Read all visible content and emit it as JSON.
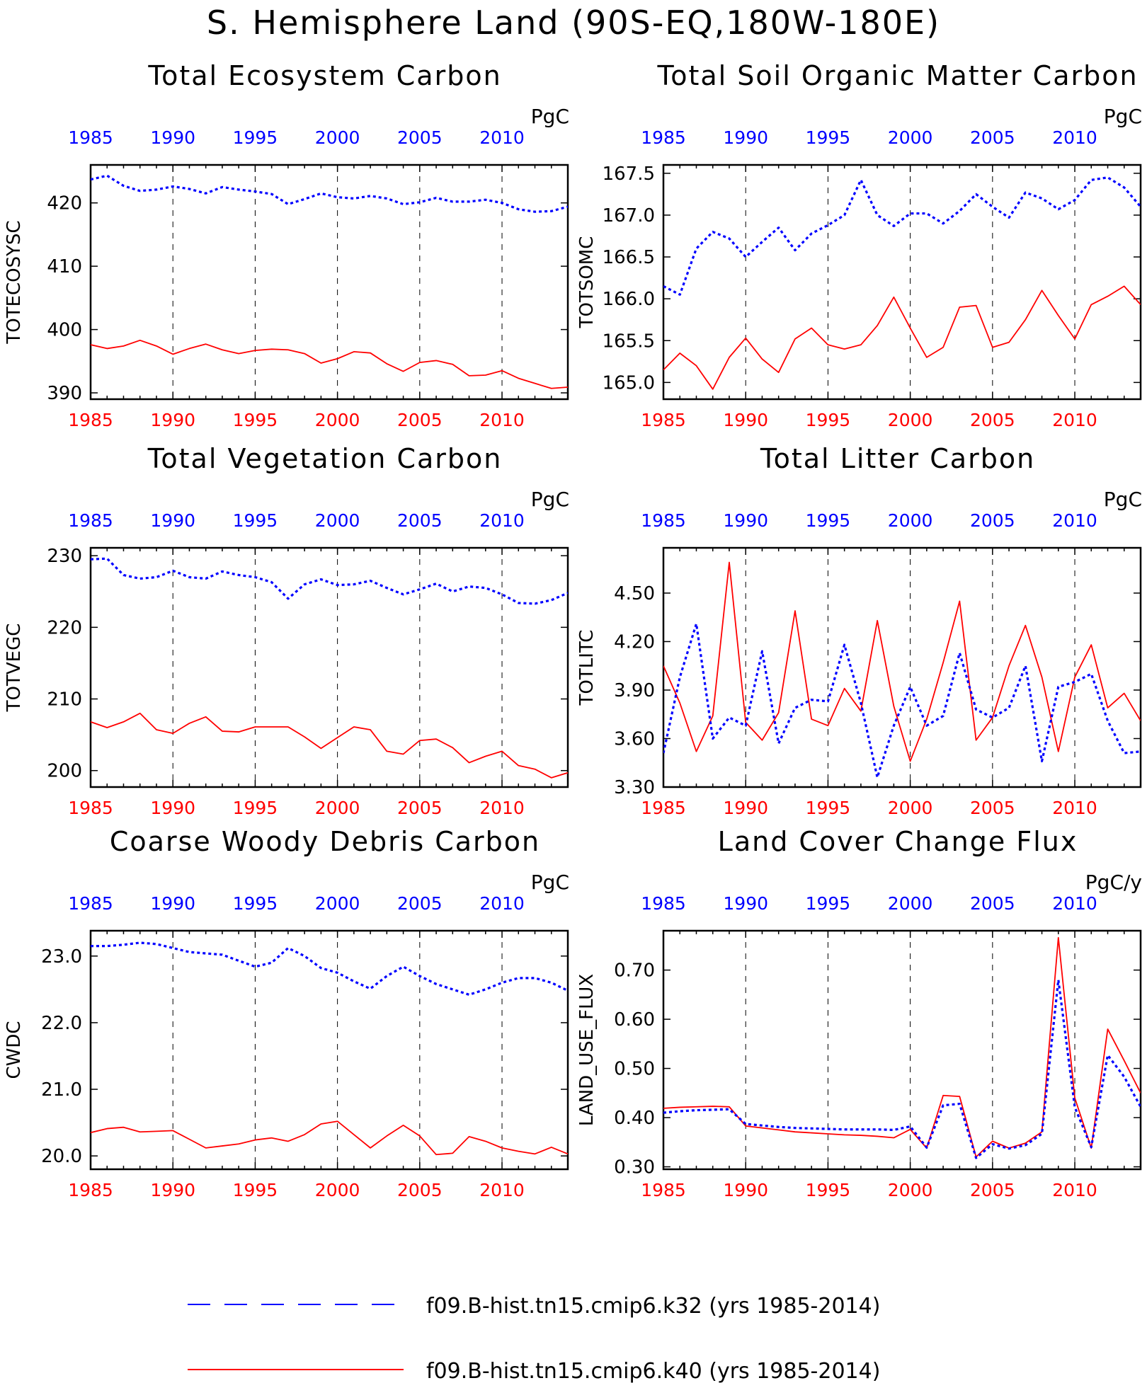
{
  "figure": {
    "title": "S. Hemisphere Land (90S-EQ,180W-180E)",
    "colors": {
      "series_k32": "#0000ff",
      "series_k40": "#ff0000",
      "axis": "#000000"
    }
  },
  "legend": {
    "entries": [
      {
        "label": "f09.B-hist.tn15.cmip6.k32 (yrs 1985-2014)",
        "color": "#0000ff",
        "style": "dashed"
      },
      {
        "label": "f09.B-hist.tn15.cmip6.k40 (yrs 1985-2014)",
        "color": "#ff0000",
        "style": "solid"
      }
    ]
  },
  "chart_data": [
    {
      "type": "line",
      "title": "Total Ecosystem Carbon",
      "ylabel": "TOTECOSYSC",
      "units": "PgC",
      "xlim": [
        1985,
        2014
      ],
      "ylim": [
        389,
        426
      ],
      "yticks": [
        390,
        400,
        410,
        420
      ],
      "ytick_labels": [
        "390",
        "400",
        "410",
        "420"
      ],
      "xticks": [
        1985,
        1990,
        1995,
        2000,
        2005,
        2010
      ],
      "x": [
        1985,
        1986,
        1987,
        1988,
        1989,
        1990,
        1991,
        1992,
        1993,
        1994,
        1995,
        1996,
        1997,
        1998,
        1999,
        2000,
        2001,
        2002,
        2003,
        2004,
        2005,
        2006,
        2007,
        2008,
        2009,
        2010,
        2011,
        2012,
        2013,
        2014
      ],
      "series": [
        {
          "name": "f09.B-hist.tn15.cmip6.k32",
          "values": [
            423.7,
            424.3,
            422.7,
            421.9,
            422.1,
            422.6,
            422.2,
            421.5,
            422.5,
            422.1,
            421.8,
            421.4,
            419.8,
            420.6,
            421.5,
            420.9,
            420.7,
            421.1,
            420.7,
            419.8,
            420.1,
            420.8,
            420.2,
            420.2,
            420.5,
            420.0,
            419.0,
            418.6,
            418.7,
            419.4
          ]
        },
        {
          "name": "f09.B-hist.tn15.cmip6.k40",
          "values": [
            397.6,
            397.0,
            397.4,
            398.3,
            397.4,
            396.1,
            397.0,
            397.7,
            396.8,
            396.2,
            396.7,
            396.9,
            396.8,
            396.2,
            394.7,
            395.4,
            396.5,
            396.3,
            394.6,
            393.4,
            394.8,
            395.1,
            394.5,
            392.7,
            392.8,
            393.5,
            392.3,
            391.5,
            390.7,
            390.9
          ]
        }
      ]
    },
    {
      "type": "line",
      "title": "Total Soil Organic Matter Carbon",
      "ylabel": "TOTSOMC",
      "units": "PgC",
      "xlim": [
        1985,
        2014
      ],
      "ylim": [
        164.8,
        167.6
      ],
      "yticks": [
        165.0,
        165.5,
        166.0,
        166.5,
        167.0,
        167.5
      ],
      "ytick_labels": [
        "165.0",
        "165.5",
        "166.0",
        "166.5",
        "167.0",
        "167.5"
      ],
      "xticks": [
        1985,
        1990,
        1995,
        2000,
        2005,
        2010
      ],
      "x": [
        1985,
        1986,
        1987,
        1988,
        1989,
        1990,
        1991,
        1992,
        1993,
        1994,
        1995,
        1996,
        1997,
        1998,
        1999,
        2000,
        2001,
        2002,
        2003,
        2004,
        2005,
        2006,
        2007,
        2008,
        2009,
        2010,
        2011,
        2012,
        2013,
        2014
      ],
      "series": [
        {
          "name": "f09.B-hist.tn15.cmip6.k32",
          "values": [
            166.15,
            166.05,
            166.6,
            166.8,
            166.72,
            166.5,
            166.68,
            166.85,
            166.58,
            166.78,
            166.88,
            167.0,
            167.42,
            167.0,
            166.87,
            167.02,
            167.02,
            166.9,
            167.05,
            167.25,
            167.1,
            166.97,
            167.27,
            167.2,
            167.07,
            167.18,
            167.42,
            167.45,
            167.33,
            167.1
          ]
        },
        {
          "name": "f09.B-hist.tn15.cmip6.k40",
          "values": [
            165.15,
            165.35,
            165.2,
            164.92,
            165.3,
            165.53,
            165.28,
            165.12,
            165.52,
            165.65,
            165.45,
            165.4,
            165.45,
            165.68,
            166.02,
            165.65,
            165.3,
            165.42,
            165.9,
            165.92,
            165.42,
            165.48,
            165.75,
            166.1,
            165.8,
            165.52,
            165.93,
            166.03,
            166.15,
            165.93
          ]
        }
      ]
    },
    {
      "type": "line",
      "title": "Total Vegetation Carbon",
      "ylabel": "TOTVEGC",
      "units": "PgC",
      "xlim": [
        1985,
        2014
      ],
      "ylim": [
        197.7,
        231.1
      ],
      "yticks": [
        200,
        210,
        220,
        230
      ],
      "ytick_labels": [
        "200",
        "210",
        "220",
        "230"
      ],
      "xticks": [
        1985,
        1990,
        1995,
        2000,
        2005,
        2010
      ],
      "x": [
        1985,
        1986,
        1987,
        1988,
        1989,
        1990,
        1991,
        1992,
        1993,
        1994,
        1995,
        1996,
        1997,
        1998,
        1999,
        2000,
        2001,
        2002,
        2003,
        2004,
        2005,
        2006,
        2007,
        2008,
        2009,
        2010,
        2011,
        2012,
        2013,
        2014
      ],
      "series": [
        {
          "name": "f09.B-hist.tn15.cmip6.k32",
          "values": [
            229.5,
            229.6,
            227.3,
            226.8,
            227.0,
            227.9,
            227.0,
            226.8,
            227.8,
            227.3,
            227.0,
            226.3,
            224.0,
            226.0,
            226.7,
            225.9,
            226.0,
            226.5,
            225.5,
            224.6,
            225.3,
            226.1,
            225.0,
            225.7,
            225.5,
            224.6,
            223.4,
            223.3,
            223.8,
            224.8
          ]
        },
        {
          "name": "f09.B-hist.tn15.cmip6.k40",
          "values": [
            206.8,
            206.0,
            206.8,
            208.0,
            205.7,
            205.2,
            206.6,
            207.5,
            205.5,
            205.4,
            206.1,
            206.1,
            206.1,
            204.7,
            203.1,
            204.6,
            206.1,
            205.7,
            202.7,
            202.3,
            204.2,
            204.4,
            203.2,
            201.1,
            202.0,
            202.7,
            200.7,
            200.2,
            199.0,
            199.7
          ]
        }
      ]
    },
    {
      "type": "line",
      "title": "Total Litter Carbon",
      "ylabel": "TOTLITC",
      "units": "PgC",
      "xlim": [
        1985,
        2014
      ],
      "ylim": [
        3.3,
        4.78
      ],
      "yticks": [
        3.3,
        3.6,
        3.9,
        4.2,
        4.5
      ],
      "ytick_labels": [
        "3.30",
        "3.60",
        "3.90",
        "4.20",
        "4.50"
      ],
      "xticks": [
        1985,
        1990,
        1995,
        2000,
        2005,
        2010
      ],
      "x": [
        1985,
        1986,
        1987,
        1988,
        1989,
        1990,
        1991,
        1992,
        1993,
        1994,
        1995,
        1996,
        1997,
        1998,
        1999,
        2000,
        2001,
        2002,
        2003,
        2004,
        2005,
        2006,
        2007,
        2008,
        2009,
        2010,
        2011,
        2012,
        2013,
        2014
      ],
      "series": [
        {
          "name": "f09.B-hist.tn15.cmip6.k32",
          "values": [
            3.51,
            3.98,
            4.31,
            3.6,
            3.73,
            3.68,
            4.14,
            3.57,
            3.79,
            3.84,
            3.83,
            4.18,
            3.82,
            3.36,
            3.68,
            3.92,
            3.68,
            3.74,
            4.13,
            3.78,
            3.73,
            3.79,
            4.05,
            3.46,
            3.92,
            3.95,
            4.0,
            3.71,
            3.51,
            3.52
          ]
        },
        {
          "name": "f09.B-hist.tn15.cmip6.k40",
          "values": [
            4.05,
            3.82,
            3.52,
            3.74,
            4.69,
            3.7,
            3.59,
            3.76,
            4.39,
            3.72,
            3.68,
            3.91,
            3.77,
            4.33,
            3.8,
            3.46,
            3.72,
            4.07,
            4.45,
            3.59,
            3.73,
            4.05,
            4.3,
            3.98,
            3.52,
            3.98,
            4.18,
            3.79,
            3.88,
            3.71
          ]
        }
      ]
    },
    {
      "type": "line",
      "title": "Coarse Woody Debris Carbon",
      "ylabel": "CWDC",
      "units": "PgC",
      "xlim": [
        1985,
        2014
      ],
      "ylim": [
        19.8,
        23.38
      ],
      "yticks": [
        20.0,
        21.0,
        22.0,
        23.0
      ],
      "ytick_labels": [
        "20.0",
        "21.0",
        "22.0",
        "23.0"
      ],
      "xticks": [
        1985,
        1990,
        1995,
        2000,
        2005,
        2010
      ],
      "x": [
        1985,
        1986,
        1987,
        1988,
        1989,
        1990,
        1991,
        1992,
        1993,
        1994,
        1995,
        1996,
        1997,
        1998,
        1999,
        2000,
        2001,
        2002,
        2003,
        2004,
        2005,
        2006,
        2007,
        2008,
        2009,
        2010,
        2011,
        2012,
        2013,
        2014
      ],
      "series": [
        {
          "name": "f09.B-hist.tn15.cmip6.k32",
          "values": [
            23.15,
            23.15,
            23.17,
            23.2,
            23.18,
            23.12,
            23.06,
            23.04,
            23.02,
            22.93,
            22.84,
            22.9,
            23.12,
            23.0,
            22.82,
            22.75,
            22.62,
            22.51,
            22.7,
            22.84,
            22.7,
            22.58,
            22.5,
            22.42,
            22.5,
            22.6,
            22.67,
            22.67,
            22.6,
            22.48
          ]
        },
        {
          "name": "f09.B-hist.tn15.cmip6.k40",
          "values": [
            20.35,
            20.41,
            20.43,
            20.36,
            20.37,
            20.38,
            20.25,
            20.12,
            20.15,
            20.18,
            20.24,
            20.27,
            20.22,
            20.32,
            20.48,
            20.52,
            20.32,
            20.12,
            20.3,
            20.46,
            20.3,
            20.02,
            20.04,
            20.29,
            20.22,
            20.12,
            20.07,
            20.03,
            20.13,
            20.03
          ]
        }
      ]
    },
    {
      "type": "line",
      "title": "Land Cover Change Flux",
      "ylabel": "LAND_USE_FLUX",
      "units": "PgC/y",
      "xlim": [
        1985,
        2014
      ],
      "ylim": [
        0.295,
        0.78
      ],
      "yticks": [
        0.3,
        0.4,
        0.5,
        0.6,
        0.7
      ],
      "ytick_labels": [
        "0.30",
        "0.40",
        "0.50",
        "0.60",
        "0.70"
      ],
      "xticks": [
        1985,
        1990,
        1995,
        2000,
        2005,
        2010
      ],
      "x": [
        1985,
        1986,
        1987,
        1988,
        1989,
        1990,
        1991,
        1992,
        1993,
        1994,
        1995,
        1996,
        1997,
        1998,
        1999,
        2000,
        2001,
        2002,
        2003,
        2004,
        2005,
        2006,
        2007,
        2008,
        2009,
        2010,
        2011,
        2012,
        2013,
        2014
      ],
      "series": [
        {
          "name": "f09.B-hist.tn15.cmip6.k32",
          "values": [
            0.41,
            0.413,
            0.415,
            0.416,
            0.417,
            0.387,
            0.384,
            0.381,
            0.379,
            0.378,
            0.377,
            0.376,
            0.376,
            0.376,
            0.375,
            0.382,
            0.339,
            0.425,
            0.428,
            0.318,
            0.346,
            0.337,
            0.344,
            0.367,
            0.68,
            0.421,
            0.34,
            0.527,
            0.483,
            0.422
          ]
        },
        {
          "name": "f09.B-hist.tn15.cmip6.k40",
          "values": [
            0.419,
            0.421,
            0.422,
            0.423,
            0.422,
            0.383,
            0.379,
            0.375,
            0.371,
            0.369,
            0.367,
            0.365,
            0.364,
            0.362,
            0.359,
            0.376,
            0.338,
            0.445,
            0.443,
            0.32,
            0.352,
            0.338,
            0.348,
            0.371,
            0.766,
            0.44,
            0.338,
            0.58,
            0.516,
            0.45
          ]
        }
      ]
    }
  ]
}
